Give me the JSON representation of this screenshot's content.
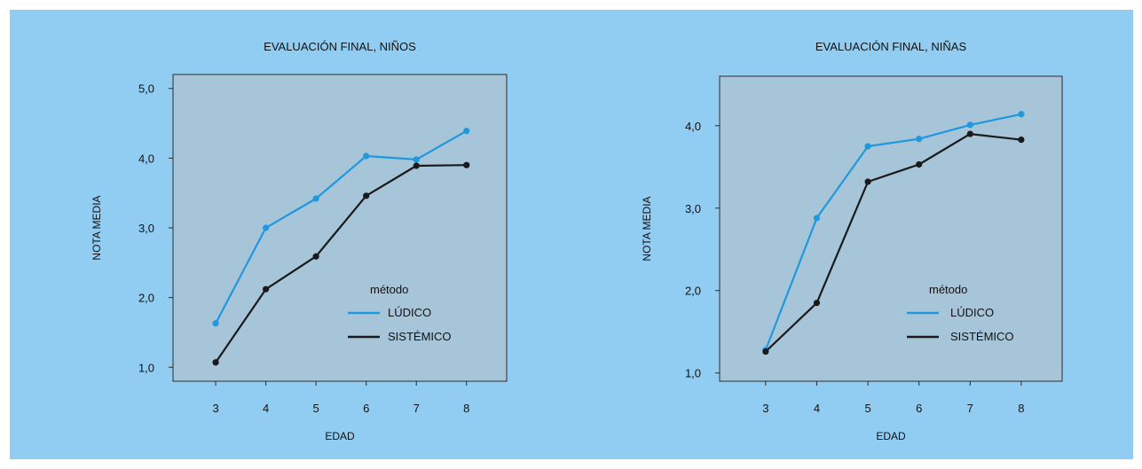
{
  "colors": {
    "background": "#91cdf2",
    "plot": "#a7c5d9",
    "ludico": "#1f98dd",
    "sistemico": "#1a1a1a"
  },
  "chart_data": [
    {
      "type": "line",
      "title": "EVALUACIÓN FINAL, NIÑOS",
      "xlabel": "EDAD",
      "ylabel": "NOTA MEDIA",
      "x": [
        3,
        4,
        5,
        6,
        7,
        8
      ],
      "xlim": [
        2.15,
        8.8
      ],
      "ylim": [
        0.8,
        5.2
      ],
      "yticks": [
        1.0,
        2.0,
        3.0,
        4.0,
        5.0
      ],
      "ytick_labels": [
        "1,0",
        "2,0",
        "3,0",
        "4,0",
        "5,0"
      ],
      "xtick_labels": [
        "3",
        "4",
        "5",
        "6",
        "7",
        "8"
      ],
      "legend": {
        "title": "método",
        "placement": "lower-right"
      },
      "series": [
        {
          "name": "LÚDICO",
          "values": [
            1.63,
            3.0,
            3.42,
            4.03,
            3.98,
            4.39
          ]
        },
        {
          "name": "SISTÉMICO",
          "values": [
            1.07,
            2.12,
            2.59,
            3.46,
            3.89,
            3.9
          ]
        }
      ]
    },
    {
      "type": "line",
      "title": "EVALUACIÓN FINAL, NIÑAS",
      "xlabel": "EDAD",
      "ylabel": "NOTA MEDIA",
      "x": [
        3,
        4,
        5,
        6,
        7,
        8
      ],
      "xlim": [
        2.1,
        8.8
      ],
      "ylim": [
        0.9,
        4.6
      ],
      "yticks": [
        1.0,
        2.0,
        3.0,
        4.0
      ],
      "ytick_labels": [
        "1,0",
        "2,0",
        "3,0",
        "4,0"
      ],
      "xtick_labels": [
        "3",
        "4",
        "5",
        "6",
        "7",
        "8"
      ],
      "legend": {
        "title": "método",
        "placement": "lower-right"
      },
      "series": [
        {
          "name": "LÚDICO",
          "values": [
            1.28,
            2.88,
            3.75,
            3.84,
            4.01,
            4.14
          ]
        },
        {
          "name": "SISTÉMICO",
          "values": [
            1.26,
            1.85,
            3.32,
            3.53,
            3.9,
            3.83
          ]
        }
      ]
    }
  ]
}
